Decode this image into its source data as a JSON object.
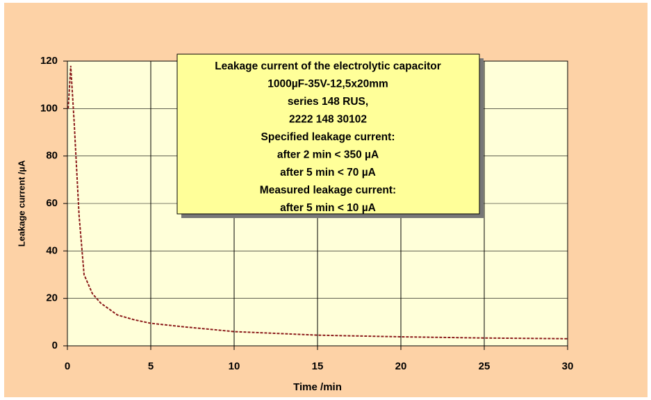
{
  "chart_data": {
    "type": "line",
    "xlabel": "Time /min",
    "ylabel": "Leakage current /µA",
    "annotation": [
      "Leakage current of the electrolytic capacitor",
      "1000µF-35V-12,5x20mm",
      "series 148 RUS,",
      "2222 148 30102",
      "Specified leakage current:",
      "after 2 min < 350 µA",
      "after 5 min < 70 µA",
      "Measured leakage current:",
      "after 5 min < 10 µA"
    ],
    "x": [
      0.05,
      0.2,
      0.4,
      0.7,
      1,
      1.5,
      2,
      3,
      4,
      5,
      7,
      10,
      15,
      20,
      25,
      30
    ],
    "series": [
      {
        "name": "Leakage current",
        "color": "#8b1a1a",
        "values": [
          100,
          118,
          95,
          55,
          30,
          22,
          18,
          13,
          11,
          9.5,
          8,
          6,
          4.5,
          3.8,
          3.3,
          3
        ]
      }
    ],
    "xlim": [
      0,
      30
    ],
    "xticks": [
      0,
      5,
      10,
      15,
      20,
      25,
      30
    ],
    "ylim": [
      0,
      120
    ],
    "yticks": [
      0,
      20,
      40,
      60,
      80,
      100,
      120
    ],
    "grid": true
  }
}
